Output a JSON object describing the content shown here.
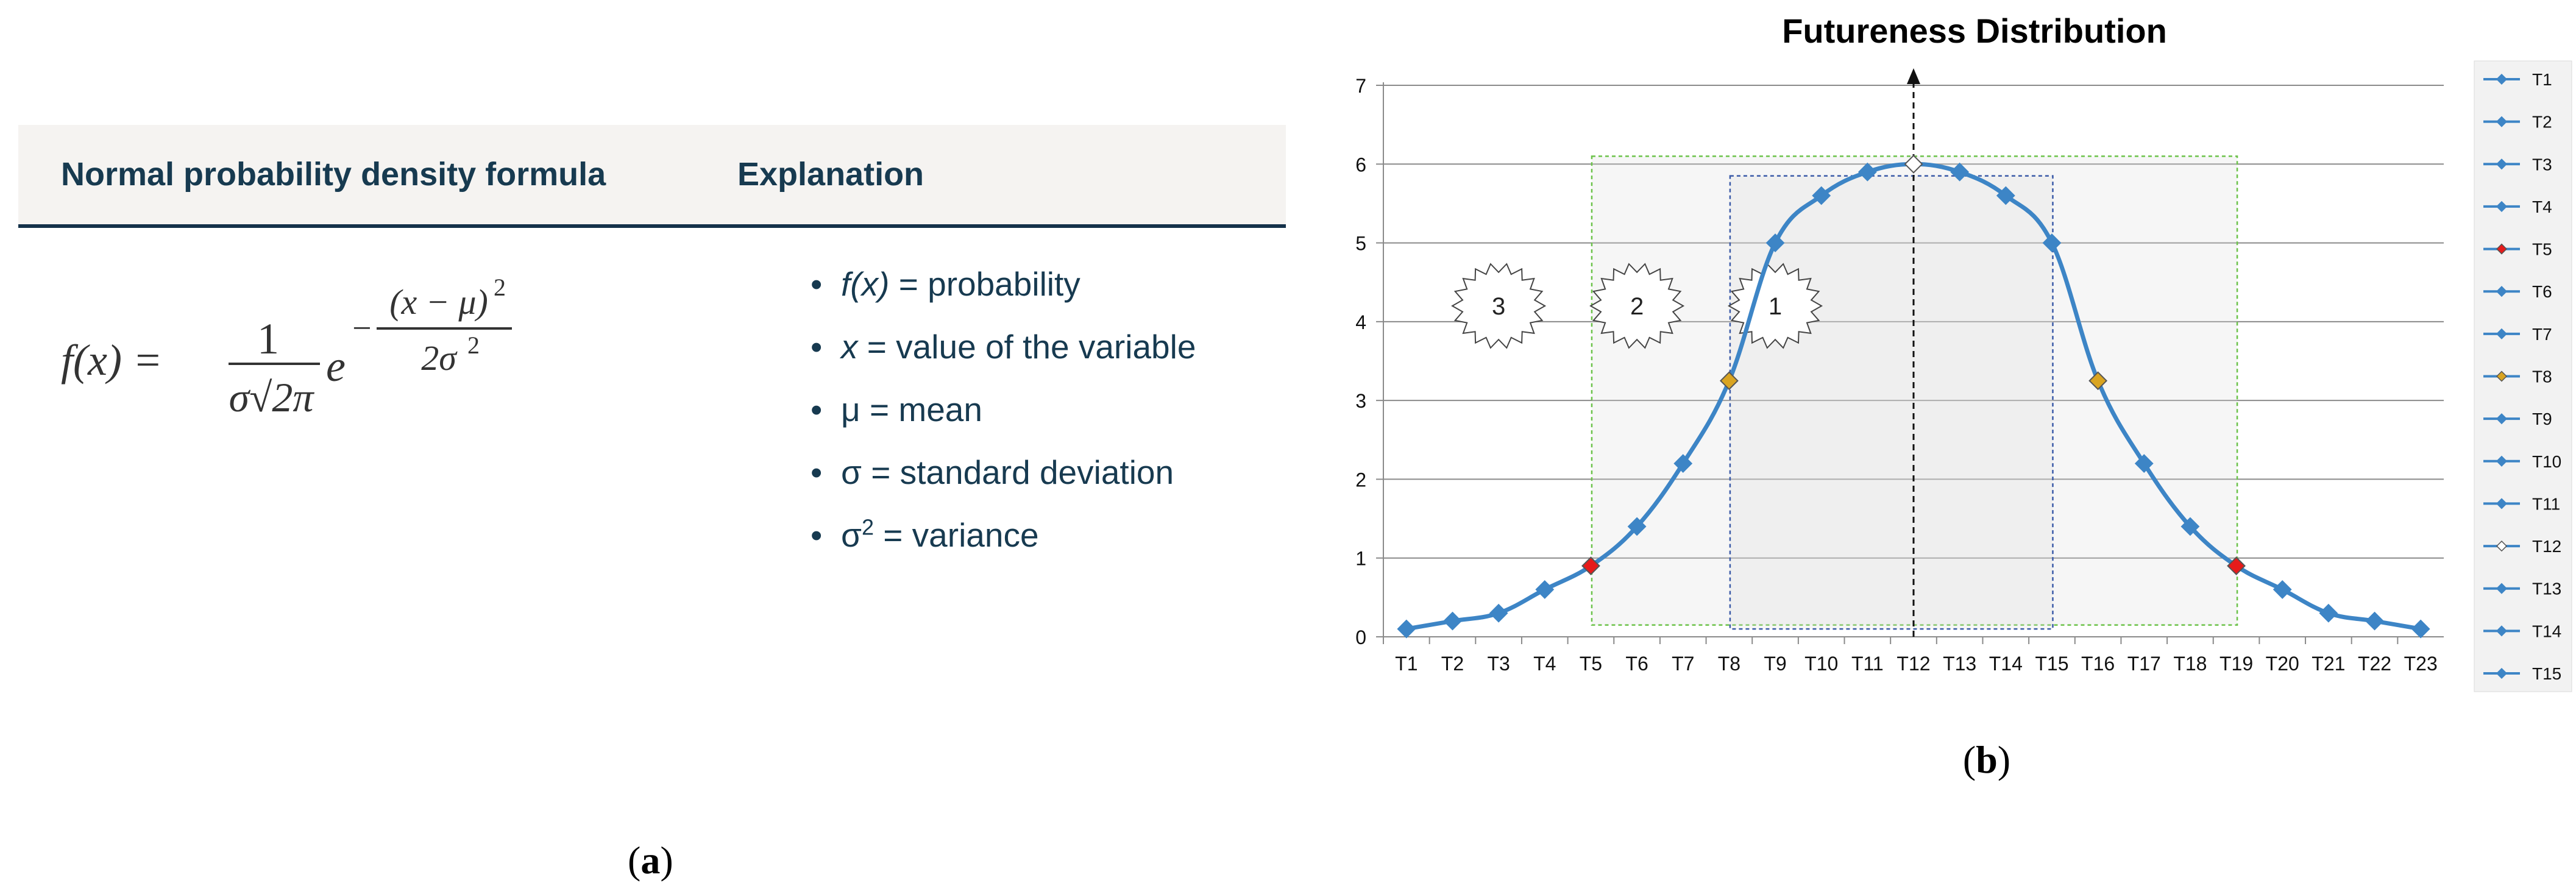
{
  "panel_a": {
    "header_formula": "Normal probability density formula",
    "header_explanation": "Explanation",
    "formula": {
      "lhs": "f(x) =",
      "numerator": "1",
      "denominator": "σ√2π",
      "base": "e",
      "exp_sign": "−",
      "exp_numerator": "(x − μ)",
      "exp_numerator_power": "2",
      "exp_denominator": "2σ",
      "exp_denominator_power": "2"
    },
    "bullets": [
      {
        "term": "f(x)",
        "text": " = probability",
        "italic": true
      },
      {
        "term": "x",
        "text": " = value of the variable",
        "italic": true
      },
      {
        "term": "μ",
        "text": " = mean",
        "italic": false
      },
      {
        "term": "σ",
        "text": " = standard deviation",
        "italic": false
      },
      {
        "term": "σ",
        "sup": "2",
        "text": " = variance",
        "italic": false
      }
    ]
  },
  "captions": {
    "open": "(",
    "a": "a",
    "b": "b",
    "close": ")"
  },
  "chart_data": {
    "type": "line",
    "title": "Futureness Distribution",
    "xlabel": "",
    "ylabel": "",
    "ylim": [
      0,
      7
    ],
    "y_ticks": [
      0,
      1,
      2,
      3,
      4,
      5,
      6,
      7
    ],
    "grid": "horizontal",
    "categories": [
      "T1",
      "T2",
      "T3",
      "T4",
      "T5",
      "T6",
      "T7",
      "T8",
      "T9",
      "T10",
      "T11",
      "T12",
      "T13",
      "T14",
      "T15",
      "T16",
      "T17",
      "T18",
      "T19",
      "T20",
      "T21",
      "T22",
      "T23"
    ],
    "values": [
      0.1,
      0.2,
      0.3,
      0.6,
      0.9,
      1.4,
      2.2,
      3.25,
      5.0,
      5.6,
      5.9,
      6.0,
      5.9,
      5.6,
      5.0,
      3.25,
      2.2,
      1.4,
      0.9,
      0.6,
      0.3,
      0.2,
      0.1
    ],
    "line_color": "#3d85c6",
    "highlights": [
      {
        "index": 4,
        "color": "#e61b1b"
      },
      {
        "index": 18,
        "color": "#e61b1b"
      },
      {
        "index": 7,
        "color": "#d9a421"
      },
      {
        "index": 15,
        "color": "#d9a421"
      },
      {
        "index": 11,
        "color": "#ffffff"
      }
    ],
    "center_arrow_x": "T12",
    "regions": [
      {
        "label": "1",
        "x_from": "T8",
        "x_to": "T15",
        "y_from": 0.1,
        "y_to": 5.85,
        "border": "#3b5ba8"
      },
      {
        "label": "2",
        "x_from": "T5",
        "x_to": "T19",
        "y_from": 0.15,
        "y_to": 6.1,
        "border": "#6cc24a"
      }
    ],
    "bursts": [
      {
        "label": "3",
        "x": "T3",
        "y": 4.2
      },
      {
        "label": "2",
        "x": "T6",
        "y": 4.2
      },
      {
        "label": "1",
        "x": "T9",
        "y": 4.2
      }
    ],
    "legend_position": "right",
    "legend": [
      "T1",
      "T2",
      "T3",
      "T4",
      "T5",
      "T6",
      "T7",
      "T8",
      "T9",
      "T10",
      "T11",
      "T12",
      "T13",
      "T14",
      "T15"
    ],
    "legend_markers": {
      "T5": "#e61b1b",
      "T8": "#d9a421",
      "T12": "#ffffff"
    }
  }
}
